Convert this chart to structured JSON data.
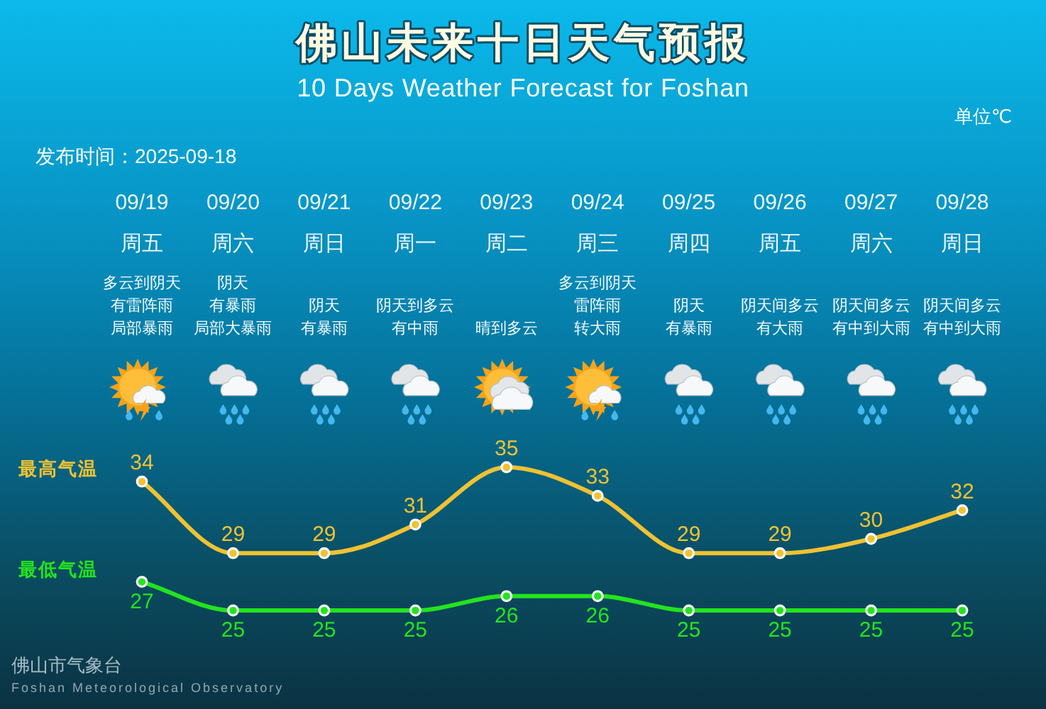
{
  "chart_data": {
    "type": "line",
    "title": "佛山未来十日天气预报",
    "subtitle": "10 Days Weather Forecast for Foshan",
    "categories": [
      "09/19",
      "09/20",
      "09/21",
      "09/22",
      "09/23",
      "09/24",
      "09/25",
      "09/26",
      "09/27",
      "09/28"
    ],
    "series": [
      {
        "name": "最高气温",
        "color": "#f0c232",
        "values": [
          34,
          29,
          29,
          31,
          35,
          33,
          29,
          29,
          30,
          32
        ]
      },
      {
        "name": "最低气温",
        "color": "#22e41e",
        "values": [
          27,
          25,
          25,
          25,
          26,
          26,
          25,
          25,
          25,
          25
        ]
      }
    ],
    "data_labels": true,
    "marker": "circle",
    "legend": "left",
    "tick_labels": "x",
    "annotations": [
      "发布时间：2025-09-18",
      "单位℃",
      "周五",
      "周六",
      "周日",
      "周一",
      "周二",
      "周三",
      "周四",
      "周五",
      "周六",
      "周日",
      "多云到阴天",
      "有雷阵雨",
      "局部暴雨",
      "阴天",
      "有暴雨",
      "局部大暴雨",
      "阴天",
      "有暴雨",
      "阴天到多云",
      "有中雨",
      "晴到多云",
      "多云到阴天",
      "雷阵雨",
      "转大雨",
      "阴天",
      "有暴雨",
      "阴天间多云",
      "有大雨",
      "阴天间多云",
      "有中到大雨",
      "阴天间多云",
      "有中到大雨",
      "佛山市气象台",
      "Foshan Meteorological Observatory"
    ]
  }
}
